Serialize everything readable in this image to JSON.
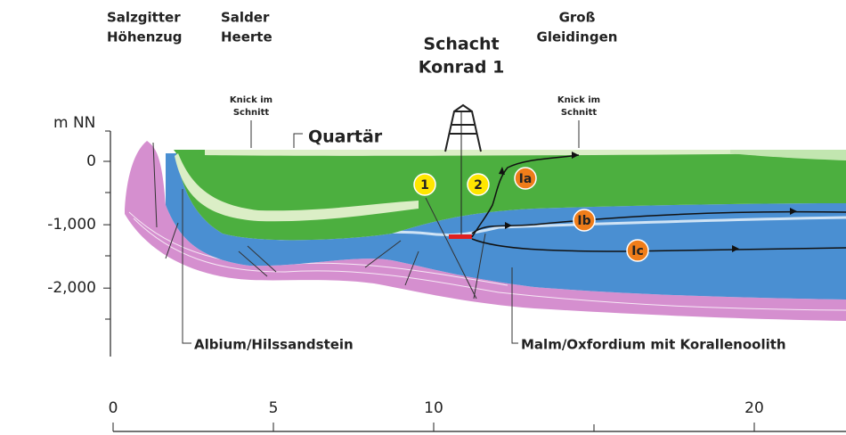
{
  "header": {
    "labels": [
      {
        "lines": [
          "Salzgitter",
          "Höhenzug"
        ]
      },
      {
        "lines": [
          "Salder",
          "Heerte"
        ]
      },
      {
        "lines": [
          "Schacht",
          "Konrad 1"
        ]
      },
      {
        "lines": [
          "Groß",
          "Gleidingen"
        ]
      }
    ]
  },
  "annotations": {
    "knick_left": [
      "Knick im",
      "Schnitt"
    ],
    "knick_right": [
      "Knick im",
      "Schnitt"
    ],
    "quartaer": "Quartär",
    "albium": "Albium/Hilssandstein",
    "malm": "Malm/Oxfordium mit Korallenoolith"
  },
  "markers": [
    "1",
    "2",
    "Ia",
    "Ib",
    "Ic"
  ],
  "depth_axis": {
    "unit": "m NN",
    "ticks": [
      {
        "value": 0,
        "label": "0"
      },
      {
        "value": -1000,
        "label": "-1,000"
      },
      {
        "value": -2000,
        "label": "-2,000"
      }
    ]
  },
  "distance_axis": {
    "ticks": [
      0,
      5,
      10,
      20
    ]
  }
}
